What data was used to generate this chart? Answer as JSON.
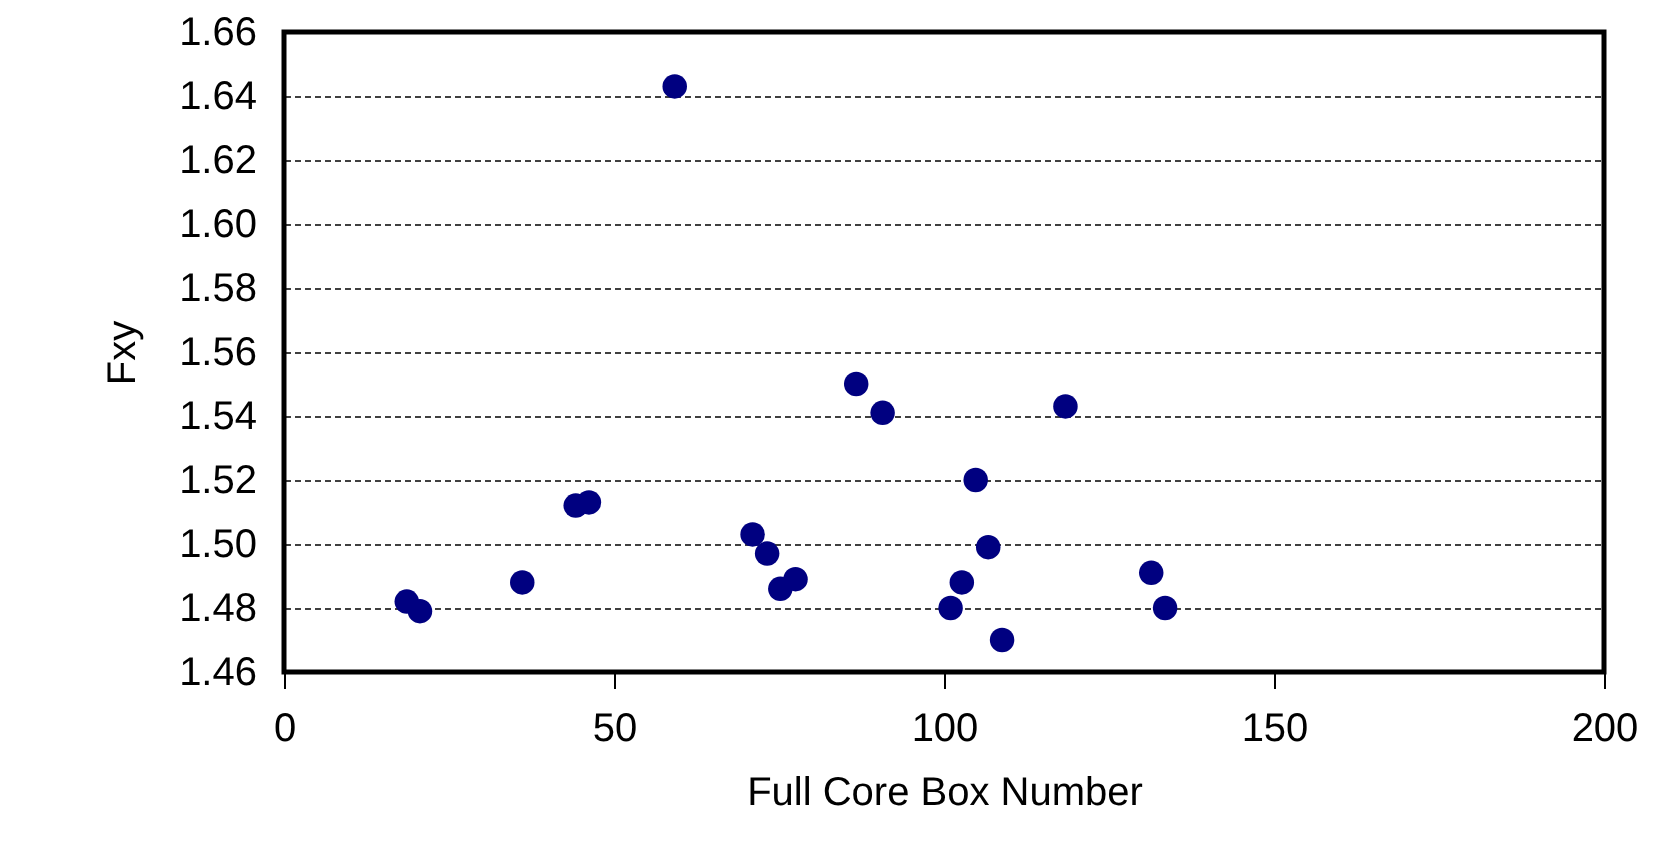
{
  "chart_data": {
    "type": "scatter",
    "xlabel": "Full Core Box Number",
    "ylabel": "Fxy",
    "x": [
      59.2,
      18.6,
      20.6,
      36.1,
      44.2,
      46.2,
      71.0,
      73.2,
      75.2,
      77.5,
      86.7,
      90.7,
      118.4,
      104.8,
      106.7,
      102.7,
      101.0,
      108.8,
      131.4,
      133.5
    ],
    "series": [
      {
        "color": "#000080",
        "values": [
          1.643,
          1.482,
          1.479,
          1.488,
          1.512,
          1.513,
          1.503,
          1.497,
          1.486,
          1.489,
          1.55,
          1.541,
          1.543,
          1.52,
          1.499,
          1.488,
          1.48,
          1.47,
          1.491,
          1.48
        ]
      }
    ],
    "xlim": [
      0,
      200
    ],
    "xticks": [
      0,
      50,
      100,
      150,
      200
    ],
    "ylim": [
      1.46,
      1.66
    ],
    "yticks": [
      1.46,
      1.48,
      {
        "value": 1.5,
        "label": "1.50"
      },
      1.52,
      1.54,
      1.56,
      1.58,
      {
        "value": 1.6,
        "label": "1.60"
      },
      1.62,
      1.64,
      1.66
    ],
    "grid": "y",
    "marker": "circle"
  }
}
